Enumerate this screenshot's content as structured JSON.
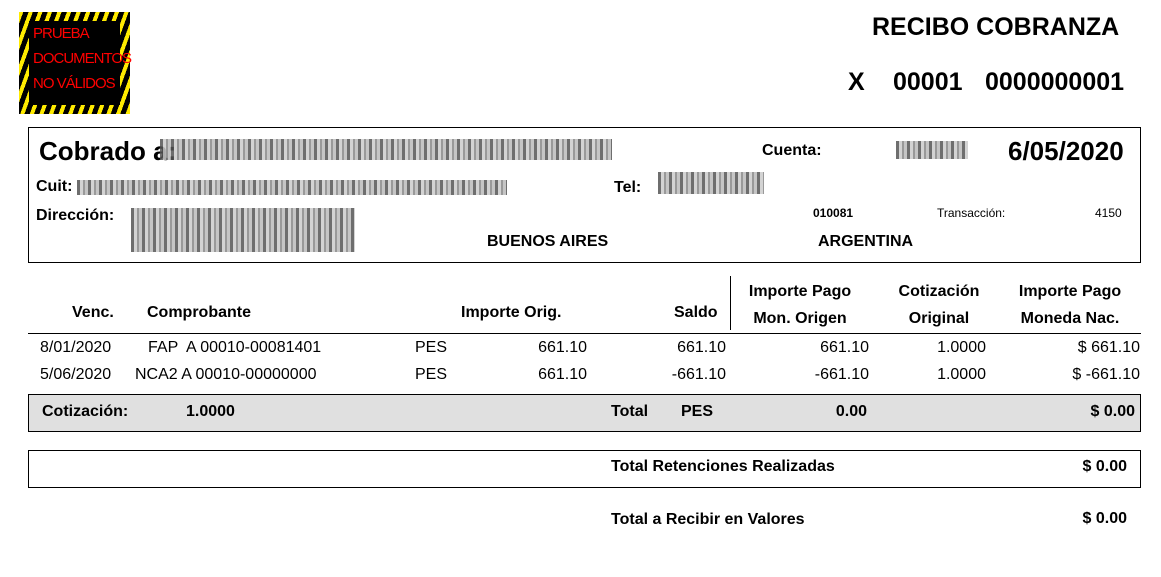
{
  "logo": {
    "lines": [
      "PRUEBA",
      "DOCUMENTOS",
      "NO VÁLIDOS"
    ],
    "colors": {
      "stripe": "#ffeb00",
      "text": "#ff0000"
    }
  },
  "header": {
    "title": "RECIBO COBRANZA",
    "letter": "X",
    "point_of_sale": "00001",
    "number": "0000000001"
  },
  "client": {
    "cobrado_label": "Cobrado a:",
    "cuit_label": "Cuit:",
    "direccion_label": "Dirección:",
    "cuenta_label": "Cuenta:",
    "tel_label": "Tel:",
    "date": "6/05/2020",
    "code": "010081",
    "transaccion_label": "Transacción:",
    "transaccion": "4150",
    "province": "BUENOS AIRES",
    "country": "ARGENTINA"
  },
  "table": {
    "headers": {
      "venc": "Venc.",
      "comprobante": "Comprobante",
      "importe_orig": "Importe Orig.",
      "saldo": "Saldo",
      "importe_pago_1": "Importe Pago",
      "importe_pago_2": "Mon. Origen",
      "cotizacion_1": "Cotización",
      "cotizacion_2": "Original",
      "importe_nac_1": "Importe Pago",
      "importe_nac_2": "Moneda Nac."
    },
    "rows": [
      {
        "venc": "8/01/2020",
        "comprobante": "FAP  A 00010-00081401",
        "moneda": "PES",
        "importe_orig": "661.10",
        "saldo": "661.10",
        "importe_pago": "661.10",
        "cotizacion": "1.0000",
        "importe_nac": "$ 661.10"
      },
      {
        "venc": "5/06/2020",
        "comprobante": "NCA2 A 00010-00000000",
        "moneda": "PES",
        "importe_orig": "661.10",
        "saldo": "-661.10",
        "importe_pago": "-661.10",
        "cotizacion": "1.0000",
        "importe_nac": "$ -661.10"
      }
    ]
  },
  "totals": {
    "cotizacion_label": "Cotización:",
    "cotizacion": "1.0000",
    "total_label": "Total",
    "moneda": "PES",
    "total_orig": "0.00",
    "total_nac": "$ 0.00"
  },
  "retenciones": {
    "label": "Total Retenciones Realizadas",
    "value": "$ 0.00"
  },
  "valores": {
    "label": "Total a Recibir en Valores",
    "value": "$ 0.00"
  }
}
